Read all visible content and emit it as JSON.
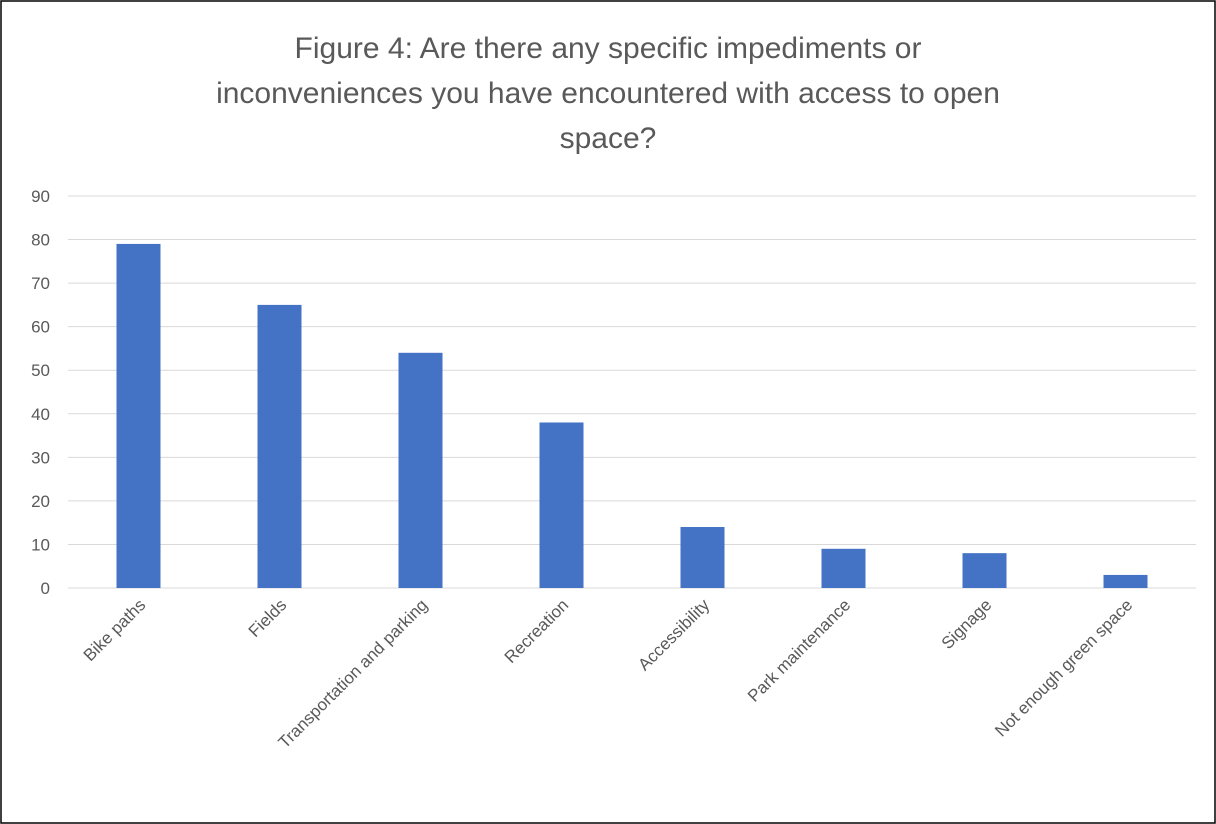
{
  "chart_data": {
    "type": "bar",
    "title": "Figure 4: Are there any specific impediments or inconveniences you have encountered with access to open space?",
    "title_lines": [
      "Figure 4: Are there any specific impediments or",
      "inconveniences you have encountered with access to open",
      "space?"
    ],
    "categories": [
      "Bike paths",
      "Fields",
      "Transportation and parking",
      "Recreation",
      "Accessibility",
      "Park maintenance",
      "Signage",
      "Not enough green space"
    ],
    "values": [
      79,
      65,
      54,
      38,
      14,
      9,
      8,
      3
    ],
    "xlabel": "",
    "ylabel": "",
    "ylim": [
      0,
      90
    ],
    "yticks": [
      0,
      10,
      20,
      30,
      40,
      50,
      60,
      70,
      80,
      90
    ],
    "grid": true,
    "legend": "none",
    "bar_color": "#4472c4"
  }
}
